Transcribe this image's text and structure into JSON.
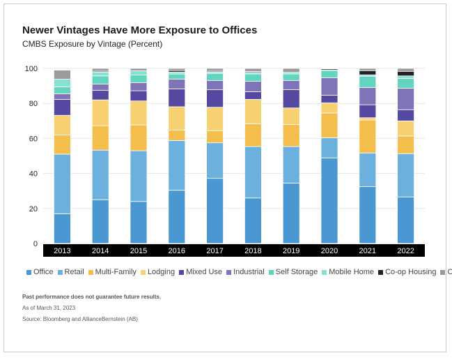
{
  "chart_data": {
    "type": "bar",
    "stacked": true,
    "title": "Newer Vintages Have More Exposure to Offices",
    "subtitle": "CMBS Exposure by Vintage (Percent)",
    "xlabel": "",
    "ylabel": "",
    "ylim": [
      0,
      100
    ],
    "yticks": [
      "0",
      "20",
      "40",
      "60",
      "80",
      "100"
    ],
    "grid": true,
    "legend_placement": "bottom",
    "categories": [
      "2013",
      "2014",
      "2015",
      "2016",
      "2017",
      "2018",
      "2019",
      "2020",
      "2021",
      "2022"
    ],
    "series": [
      {
        "name": "Office",
        "color": "#4a97d1",
        "values": [
          17,
          25,
          24,
          30.4,
          37.2,
          26,
          34.5,
          48.9,
          32.5,
          26.6
        ]
      },
      {
        "name": "Retail",
        "color": "#6cb0dd",
        "values": [
          34,
          28.3,
          29,
          28.4,
          20.3,
          29.4,
          20.9,
          11.5,
          19.2,
          24.7
        ]
      },
      {
        "name": "Multi-Family",
        "color": "#f4be4c",
        "values": [
          11,
          14,
          14.7,
          6,
          6.9,
          13,
          12.6,
          14.1,
          18.8,
          10.1
        ]
      },
      {
        "name": "Lodging",
        "color": "#f6d071",
        "values": [
          11.2,
          14.7,
          13.7,
          13.3,
          13.4,
          13.9,
          9.4,
          5.8,
          1.3,
          8.6
        ]
      },
      {
        "name": "Mixed Use",
        "color": "#5548a0",
        "values": [
          9.1,
          5.5,
          5.8,
          10.2,
          10,
          4.4,
          10.5,
          4.4,
          7.4,
          6.4
        ]
      },
      {
        "name": "Industrial",
        "color": "#8074b9",
        "values": [
          3.2,
          3.5,
          4.7,
          5.6,
          5.3,
          5.9,
          5.2,
          10,
          9.9,
          12.3
        ]
      },
      {
        "name": "Self Storage",
        "color": "#62d5bf",
        "values": [
          4,
          4.7,
          4.3,
          2.9,
          4,
          4.2,
          3.7,
          4.1,
          6.4,
          5.6
        ]
      },
      {
        "name": "Mobile Home",
        "color": "#86e1d3",
        "values": [
          4.3,
          2.2,
          2.4,
          1.1,
          0.8,
          0.9,
          0.9,
          0.2,
          0.8,
          1.4
        ]
      },
      {
        "name": "Co-op Housing",
        "color": "#222222",
        "values": [
          0,
          0.5,
          0,
          0.9,
          0.5,
          0.5,
          0,
          0.7,
          2.4,
          2.6
        ]
      },
      {
        "name": "Other",
        "color": "#9b9b9b",
        "values": [
          5.2,
          1.6,
          1.4,
          1.2,
          1.6,
          1.8,
          2.3,
          0.3,
          1.3,
          1.7
        ]
      }
    ]
  },
  "footnotes": {
    "disclaimer": "Past performance does not guarantee future results.",
    "as_of": "As of March 31, 2023",
    "source": "Source: Bloomberg and AllianceBernstein (AB)"
  }
}
